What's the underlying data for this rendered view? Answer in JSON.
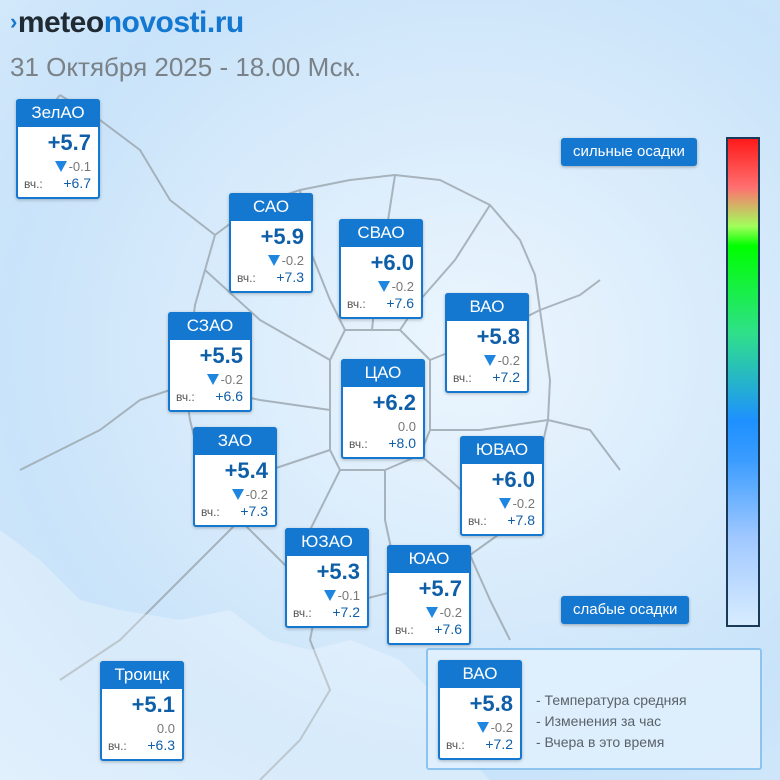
{
  "brand": {
    "arrow": "›",
    "part1": "meteo",
    "part2": "novosti.ru"
  },
  "subtitle": "31 Октября 2025 - 18.00 Мск.",
  "scale": {
    "top_label": "сильные осадки",
    "bottom_label": "слабые осадки"
  },
  "yesterday_label": "вч.:",
  "districts": [
    {
      "name": "ЗелАО",
      "temp": "+5.7",
      "change": "-0.1",
      "yesterday": "+6.7"
    },
    {
      "name": "САО",
      "temp": "+5.9",
      "change": "-0.2",
      "yesterday": "+7.3"
    },
    {
      "name": "СВАО",
      "temp": "+6.0",
      "change": "-0.2",
      "yesterday": "+7.6"
    },
    {
      "name": "ВАО",
      "temp": "+5.8",
      "change": "-0.2",
      "yesterday": "+7.2"
    },
    {
      "name": "СЗАО",
      "temp": "+5.5",
      "change": "-0.2",
      "yesterday": "+6.6"
    },
    {
      "name": "ЦАО",
      "temp": "+6.2",
      "change": "0.0",
      "yesterday": "+8.0"
    },
    {
      "name": "ЗАО",
      "temp": "+5.4",
      "change": "-0.2",
      "yesterday": "+7.3"
    },
    {
      "name": "ЮВАО",
      "temp": "+6.0",
      "change": "-0.2",
      "yesterday": "+7.8"
    },
    {
      "name": "ЮЗАО",
      "temp": "+5.3",
      "change": "-0.1",
      "yesterday": "+7.2"
    },
    {
      "name": "ЮАО",
      "temp": "+5.7",
      "change": "-0.2",
      "yesterday": "+7.6"
    },
    {
      "name": "Троицк",
      "temp": "+5.1",
      "change": "0.0",
      "yesterday": "+6.3"
    }
  ],
  "legend": {
    "example": {
      "name": "ВАО",
      "temp": "+5.8",
      "change": "-0.2",
      "yesterday": "+7.2"
    },
    "lines": [
      "- Температура средняя",
      "- Изменения за час",
      "- Вчера в это время"
    ]
  },
  "colors": {
    "accent": "#1478d0",
    "value_text": "#0f5fa8",
    "map_background": "#d8ebfb"
  }
}
